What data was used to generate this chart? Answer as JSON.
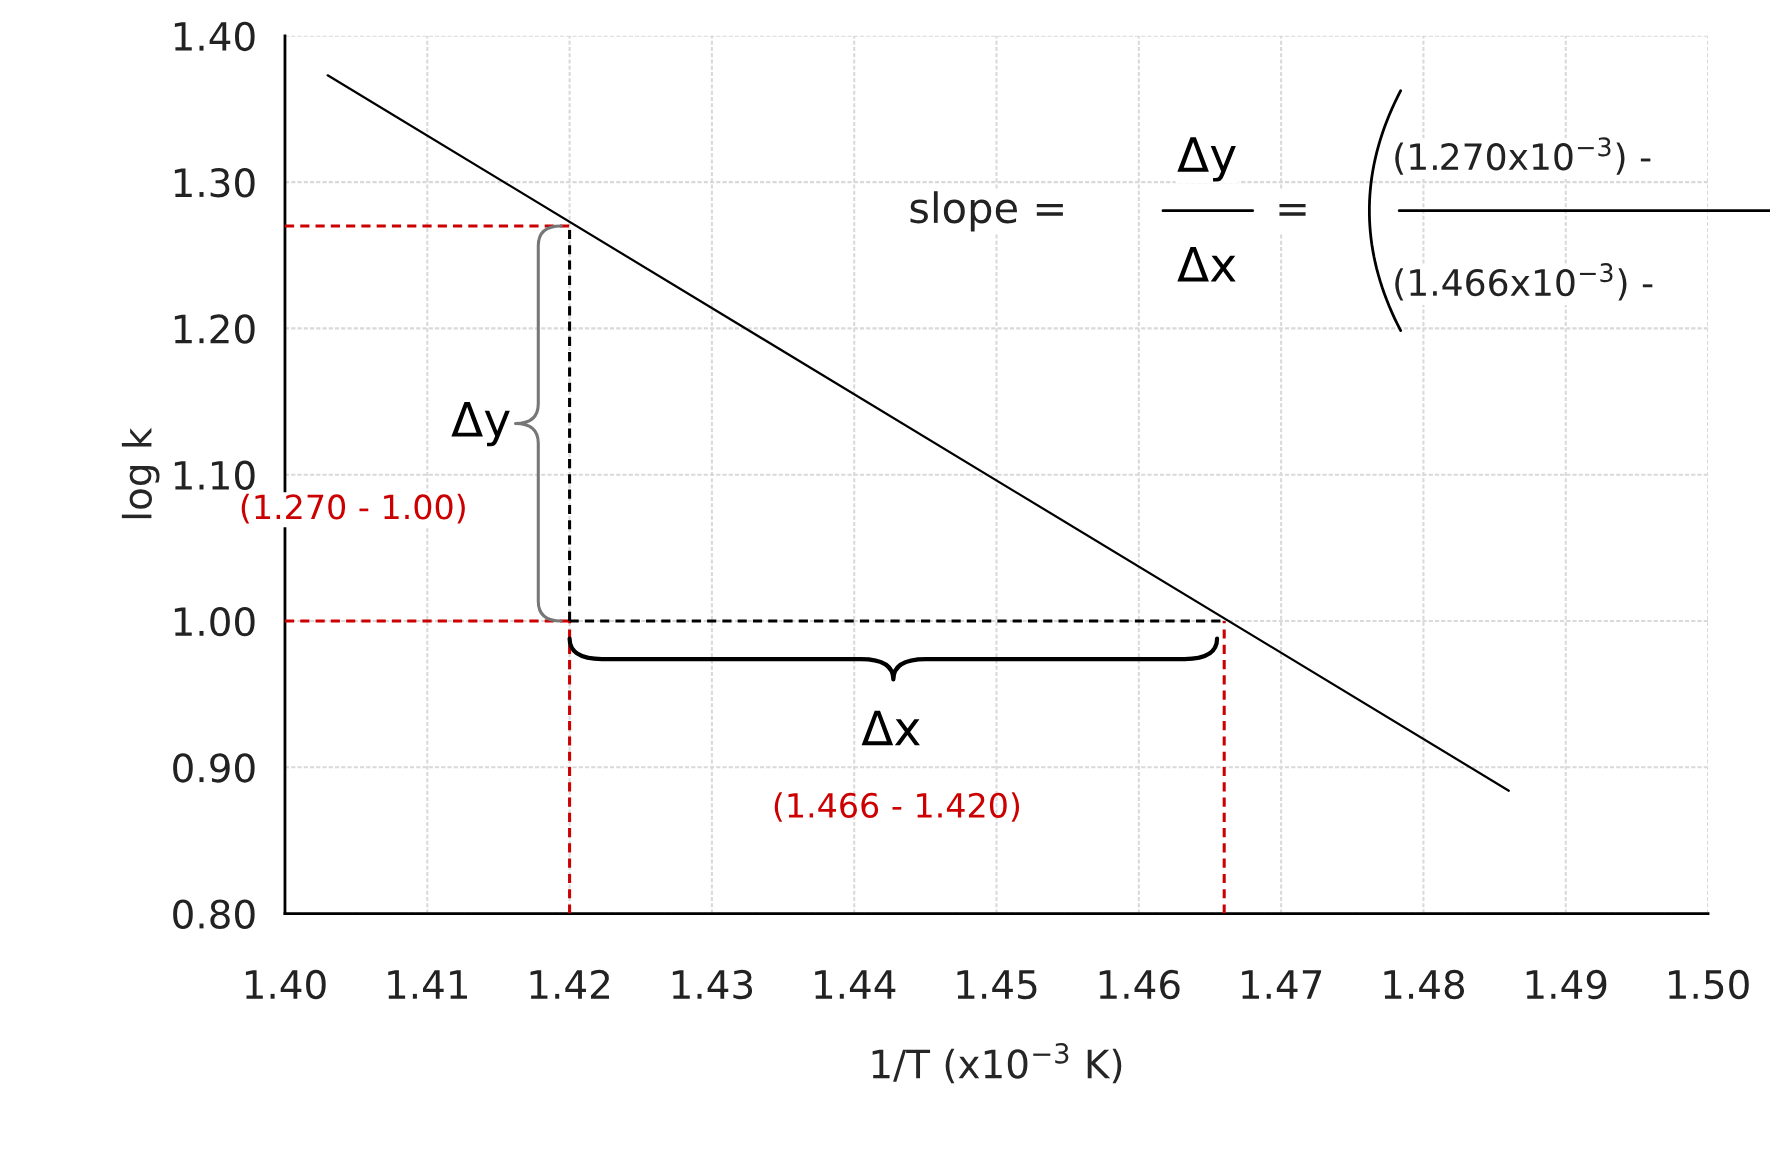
{
  "chart_data": {
    "type": "line",
    "xlabel": "1/T (x10$^{−3}$ K)",
    "ylabel": "log k",
    "xlim": [
      1.4,
      1.5
    ],
    "ylim": [
      0.8,
      1.4
    ],
    "xticks": [
      {
        "value": 1.4,
        "label": "1.40"
      },
      {
        "value": 1.41,
        "label": "1.41"
      },
      {
        "value": 1.42,
        "label": "1.42"
      },
      {
        "value": 1.43,
        "label": "1.43"
      },
      {
        "value": 1.44,
        "label": "1.44"
      },
      {
        "value": 1.45,
        "label": "1.45"
      },
      {
        "value": 1.46,
        "label": "1.46"
      },
      {
        "value": 1.47,
        "label": "1.47"
      },
      {
        "value": 1.48,
        "label": "1.48"
      },
      {
        "value": 1.49,
        "label": "1.49"
      },
      {
        "value": 1.5,
        "label": "1.50"
      }
    ],
    "yticks": [
      {
        "value": 0.8,
        "label": "0.80"
      },
      {
        "value": 0.9,
        "label": "0.90"
      },
      {
        "value": 1.0,
        "label": "1.00"
      },
      {
        "value": 1.1,
        "label": "1.10"
      },
      {
        "value": 1.2,
        "label": "1.20"
      },
      {
        "value": 1.3,
        "label": "1.30"
      },
      {
        "value": 1.4,
        "label": "1.40"
      }
    ],
    "grid": true,
    "marker": "none",
    "series": [
      {
        "color": "#000000",
        "x": [
          1.403,
          1.486
        ],
        "values": [
          1.373,
          0.884
        ],
        "line_style": "solid"
      },
      {
        "color": "#cc0000",
        "x": [
          1.4,
          1.42
        ],
        "values": [
          1.27,
          1.27
        ],
        "line_style": "dashed"
      },
      {
        "color": "#cc0000",
        "x": [
          1.4,
          1.42
        ],
        "values": [
          1.0,
          1.0
        ],
        "line_style": "dashed"
      },
      {
        "color": "#cc0000",
        "x": [
          1.42,
          1.42
        ],
        "values": [
          0.8,
          1.0
        ],
        "line_style": "dashed"
      },
      {
        "color": "#cc0000",
        "x": [
          1.466,
          1.466
        ],
        "values": [
          0.8,
          1.0
        ],
        "line_style": "dashed"
      },
      {
        "color": "#000000",
        "x": [
          1.42,
          1.42
        ],
        "values": [
          1.0,
          1.27
        ],
        "line_style": "dashed"
      },
      {
        "color": "#000000",
        "x": [
          1.42,
          1.466
        ],
        "values": [
          1.0,
          1.0
        ],
        "line_style": "dashed"
      }
    ],
    "annotations": [
      {
        "text": "Δy",
        "x": 1.42,
        "y": 1.135
      },
      "(1.270 - 1.00)",
      {
        "text": "Δx",
        "x": 1.443,
        "y": 1.0
      },
      "(1.466 - 1.420)",
      "slope =",
      "Δy",
      "Δx",
      "=",
      "(1.270x10$^{−3}$) -",
      "(1.466x10$^{−3}$) -"
    ]
  }
}
